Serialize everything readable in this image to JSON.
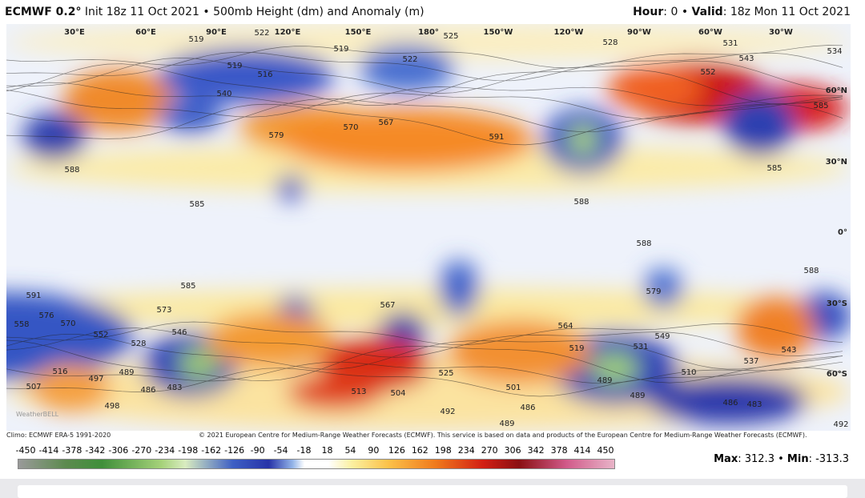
{
  "header": {
    "model": "ECMWF 0.2°",
    "init": "Init 18z 11 Oct 2021",
    "separator": "•",
    "product": "500mb Height (dm) and Anomaly (m)",
    "hour_label": "Hour",
    "hour": ": 0",
    "valid_label": "Valid",
    "valid": ": 18z Mon 11 Oct 2021"
  },
  "map": {
    "longitude_labels": [
      "30°E",
      "60°E",
      "90°E",
      "120°E",
      "150°E",
      "180°",
      "150°W",
      "120°W",
      "90°W",
      "60°W",
      "30°W"
    ],
    "latitude_labels": [
      "60°N",
      "30°N",
      "0°",
      "30°S",
      "60°S"
    ],
    "contour_labels": [
      519,
      522,
      525,
      528,
      531,
      534,
      543,
      552,
      585,
      519,
      516,
      522,
      519,
      540,
      579,
      570,
      567,
      591,
      588,
      585,
      585,
      588,
      588,
      588,
      585,
      591,
      573,
      576,
      570,
      558,
      552,
      528,
      546,
      567,
      564,
      579,
      549,
      531,
      537,
      543,
      519,
      489,
      483,
      486,
      497,
      507,
      516,
      498,
      513,
      504,
      525,
      501,
      486,
      492,
      489,
      489,
      489,
      483,
      486,
      510,
      492
    ],
    "watermark": "WeatherBELL"
  },
  "footer": {
    "climo": "Climo: ECMWF ERA-5 1991-2020",
    "copyright": "© 2021 European Centre for Medium-Range Weather Forecasts (ECMWF). This service is based on data and products of the European Centre for Medium-Range Weather Forecasts (ECMWF)."
  },
  "colorbar": {
    "ticks": [
      -450,
      -414,
      -378,
      -342,
      -306,
      -270,
      -234,
      -198,
      -162,
      -126,
      -90,
      -54,
      -18,
      18,
      54,
      90,
      126,
      162,
      198,
      234,
      270,
      306,
      342,
      378,
      414,
      450
    ]
  },
  "stats": {
    "max_label": "Max",
    "max": ": 312.3",
    "separator": "•",
    "min_label": "Min",
    "min": ": -313.3"
  }
}
